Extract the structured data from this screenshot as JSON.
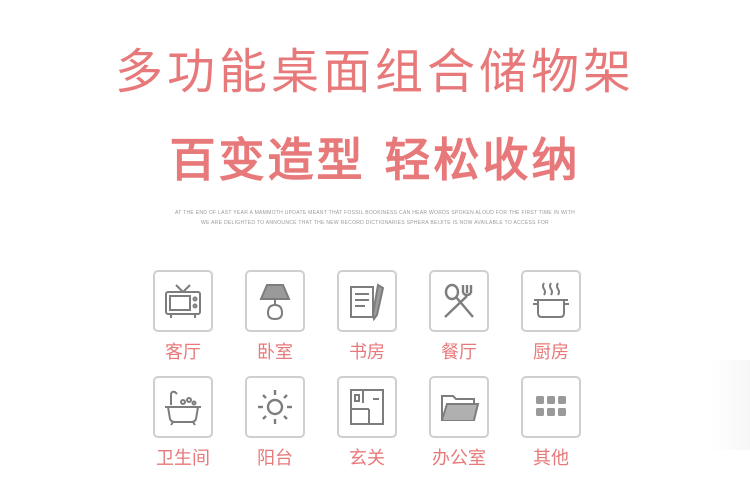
{
  "header": {
    "title": "多功能桌面组合储物架",
    "subtitle": "百变造型 轻松收纳",
    "fine_line_1": "AT THE END OF LAST YEAR A MAMMOTH UPDATE MEANT THAT FOSSIL BOOKINESS CAN HEAR WORDS SPOKEN ALOUD FOR THE FIRST TIME IN WITH",
    "fine_line_2": "WE ARE DELIGHTED TO ANNOUNCE THAT THE NEW RECORD DICTIONARIES SPHERA BEIJITE IS NOW AVAILABLE TO ACCESS FOR"
  },
  "rooms": [
    {
      "label": "客厅",
      "icon": "tv-icon"
    },
    {
      "label": "卧室",
      "icon": "lamp-icon"
    },
    {
      "label": "书房",
      "icon": "document-pen-icon"
    },
    {
      "label": "餐厅",
      "icon": "fork-spoon-icon"
    },
    {
      "label": "厨房",
      "icon": "cooking-pot-icon"
    },
    {
      "label": "卫生间",
      "icon": "bathtub-icon"
    },
    {
      "label": "阳台",
      "icon": "sun-icon"
    },
    {
      "label": "玄关",
      "icon": "floorplan-icon"
    },
    {
      "label": "办公室",
      "icon": "folder-icon"
    },
    {
      "label": "其他",
      "icon": "grid-icon"
    }
  ],
  "colors": {
    "accent": "#e8797b",
    "icon_stroke": "#7d7d7d",
    "border": "#cfcfcf"
  }
}
